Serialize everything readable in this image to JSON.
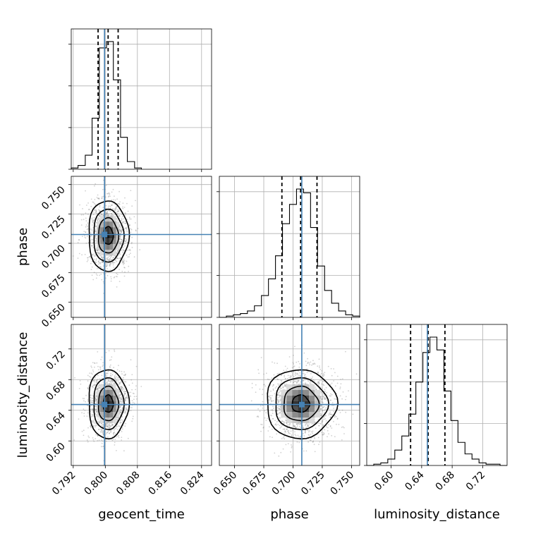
{
  "chart_data": {
    "type": "corner",
    "parameters": [
      "geocent_time",
      "phase",
      "luminosity_distance"
    ],
    "axis_labels": {
      "x": [
        "geocent_time",
        "phase",
        "luminosity_distance"
      ],
      "y": [
        "phase",
        "luminosity_distance"
      ]
    },
    "ranges": {
      "geocent_time": [
        0.7915,
        0.8265
      ],
      "phase": [
        0.637,
        0.757
      ],
      "luminosity_distance": [
        0.568,
        0.752
      ]
    },
    "ticks": {
      "geocent_time": [
        "0.792",
        "0.800",
        "0.808",
        "0.816",
        "0.824"
      ],
      "phase": [
        "0.650",
        "0.675",
        "0.700",
        "0.725",
        "0.750"
      ],
      "luminosity_distance": [
        "0.60",
        "0.64",
        "0.68",
        "0.72"
      ]
    },
    "truths": {
      "geocent_time": 0.7998,
      "phase": 0.7075,
      "luminosity_distance": 0.6475
    },
    "quantiles": {
      "geocent_time": [
        0.7982,
        0.8007,
        0.8032
      ],
      "phase": [
        0.6905,
        0.7065,
        0.7205
      ],
      "luominosity_distance_note": "",
      "luminosity_distance": [
        0.6255,
        0.6485,
        0.6705
      ]
    },
    "histograms": {
      "geocent_time": {
        "edges": [
          0.7915,
          0.7932,
          0.795,
          0.7967,
          0.7985,
          0.8003,
          0.802,
          0.8038,
          0.8055,
          0.8073,
          0.809
        ],
        "counts": [
          1,
          3,
          11,
          40,
          95,
          100,
          70,
          25,
          6,
          1
        ]
      },
      "phase": {
        "edges": [
          0.637,
          0.643,
          0.649,
          0.655,
          0.661,
          0.667,
          0.673,
          0.679,
          0.685,
          0.691,
          0.697,
          0.703,
          0.709,
          0.715,
          0.721,
          0.727,
          0.733,
          0.739,
          0.745,
          0.751,
          0.757
        ],
        "counts": [
          0,
          1,
          2,
          3,
          5,
          9,
          17,
          30,
          48,
          73,
          88,
          100,
          97,
          70,
          40,
          21,
          11,
          5,
          2,
          1
        ]
      },
      "luminosity_distance": {
        "edges": [
          0.568,
          0.5772,
          0.5864,
          0.5956,
          0.6048,
          0.614,
          0.6232,
          0.6324,
          0.6416,
          0.6508,
          0.66,
          0.6692,
          0.6784,
          0.6876,
          0.6968,
          0.706,
          0.7152,
          0.7244,
          0.7336,
          0.7428,
          0.752
        ],
        "counts": [
          0,
          1,
          2,
          5,
          12,
          23,
          40,
          65,
          88,
          100,
          90,
          58,
          35,
          18,
          9,
          5,
          2,
          1,
          1,
          0
        ]
      }
    },
    "colors": {
      "truth": "#4682b4",
      "hist": "#000000",
      "quantile": "#000000",
      "scatter": "#7a7a7a"
    },
    "grid": true
  }
}
